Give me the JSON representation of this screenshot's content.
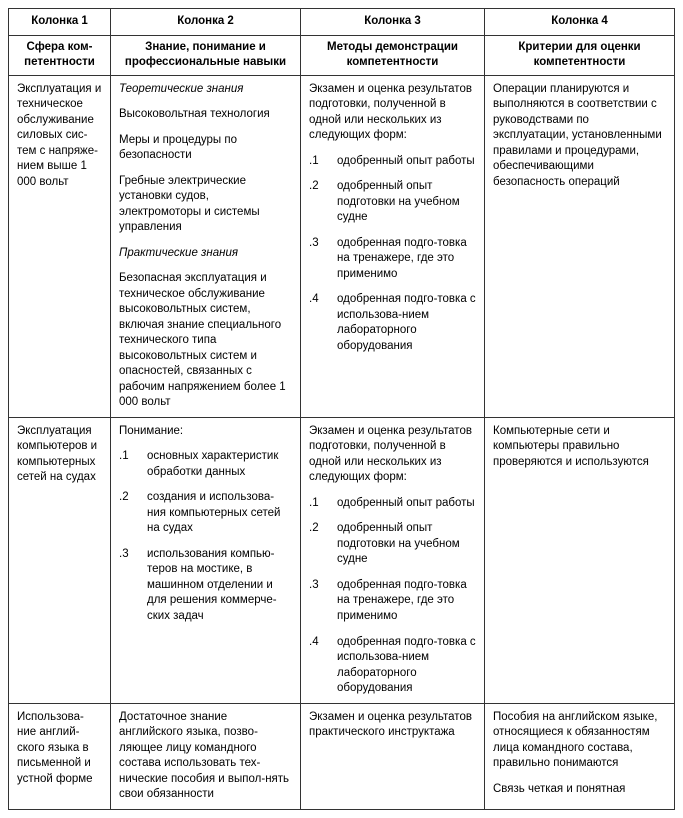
{
  "headers": {
    "row1": {
      "c1": "Колонка 1",
      "c2": "Колонка 2",
      "c3": "Колонка 3",
      "c4": "Колонка 4"
    },
    "row2": {
      "c1": "Сфера ком-\nпетентности",
      "c2": "Знание, понимание и профессиональные навыки",
      "c3": "Методы демонстрации компетентности",
      "c4": "Критерии для оценки компетентности"
    }
  },
  "rows": [
    {
      "c1": "Эксплуатация и техническое обслуживание силовых сис-тем с напряже-нием выше 1 000 вольт",
      "c2_heading1": "Теоретические знания",
      "c2_p1": "Высоковольтная технология",
      "c2_p2": "Меры и процедуры по безопасности",
      "c2_p3": "Гребные электрические установки судов, электромоторы и системы управления",
      "c2_heading2": "Практические знания",
      "c2_p4": "Безопасная эксплуатация и техническое обслуживание высоковольтных систем, включая знание специального технического типа высоковольтных систем и опасностей, связанных с рабочим напряжением более 1 000 вольт",
      "c3_intro": "Экзамен и оценка результатов подготовки, полученной в одной или нескольких из следующих форм:",
      "c3_items": [
        {
          "n": ".1",
          "t": "одобренный опыт работы"
        },
        {
          "n": ".2",
          "t": "одобренный опыт подготовки на учебном судне"
        },
        {
          "n": ".3",
          "t": "одобренная подго-товка на тренажере, где это применимо"
        },
        {
          "n": ".4",
          "t": "одобренная подго-товка с использова-нием лабораторного оборудования"
        }
      ],
      "c4": "Операции планируются и выполняются в соответствии с руководствами по эксплуатации, установленными правилами и процедурами, обеспечивающими безопасность операций"
    },
    {
      "c1": "Эксплуатация компьютеров и компьютерных сетей на судах",
      "c2_lead": "Понимание:",
      "c2_items": [
        {
          "n": ".1",
          "t": "основных характеристик обработки данных"
        },
        {
          "n": ".2",
          "t": "создания и использова-ния компьютерных сетей на судах"
        },
        {
          "n": ".3",
          "t": "использования компью-теров на мостике, в машинном отделении и для решения коммерче-ских задач"
        }
      ],
      "c3_intro": "Экзамен и оценка результатов подготовки, полученной в одной или нескольких из следующих форм:",
      "c3_items": [
        {
          "n": ".1",
          "t": "одобренный опыт работы"
        },
        {
          "n": ".2",
          "t": "одобренный опыт подготовки на учебном судне"
        },
        {
          "n": ".3",
          "t": "одобренная подго-товка на тренажере, где это применимо"
        },
        {
          "n": ".4",
          "t": "одобренная подго-товка с использова-нием лабораторного оборудования"
        }
      ],
      "c4": "Компьютерные сети и компьютеры правильно проверяются и используются"
    },
    {
      "c1": "Использова-ние англий-ского языка в письменной и устной форме",
      "c2_p1": "Достаточное знание английского языка, позво-ляющее лицу командного состава использовать тех-нические пособия и выпол-нять свои обязанности",
      "c3_p1": "Экзамен и оценка результатов практического инструктажа",
      "c4_p1": "Пособия на английском языке, относящиеся к обязанностям лица командного состава, правильно понимаются",
      "c4_p2": "Связь четкая и понятная"
    }
  ],
  "style": {
    "font_family": "Arial",
    "font_size_pt": 9,
    "border_color": "#333333",
    "background_color": "#ffffff",
    "text_color": "#000000"
  }
}
